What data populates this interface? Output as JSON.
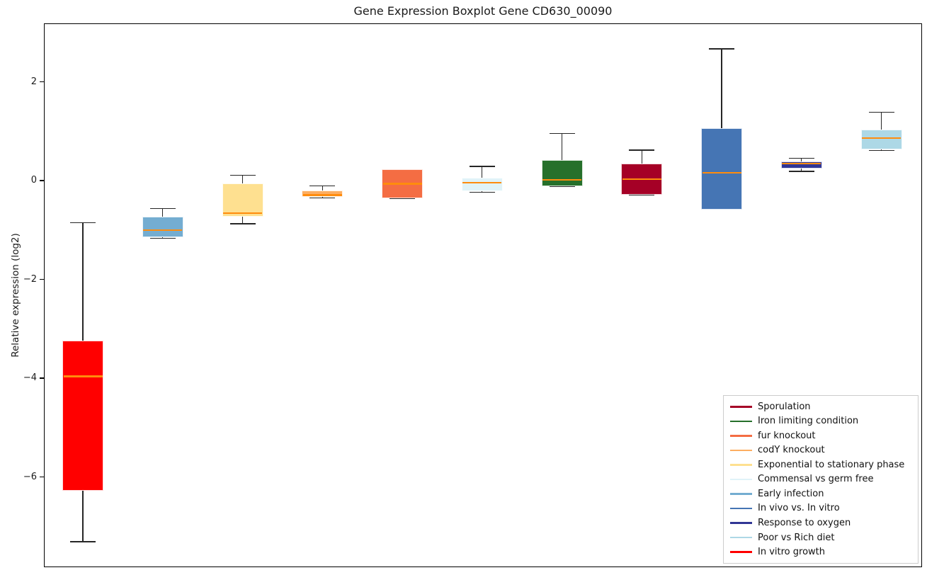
{
  "chart_data": {
    "type": "boxplot",
    "title": "Gene Expression Boxplot Gene CD630_00090",
    "ylabel": "Relative expression (log2)",
    "xlabel": "",
    "x_tick_labels": [],
    "grid": false,
    "ylim": [
      -7.84,
      3.18
    ],
    "yticks": [
      {
        "label": "2",
        "value": 2
      },
      {
        "label": "0",
        "value": 0
      },
      {
        "label": "−2",
        "value": -2
      },
      {
        "label": "−4",
        "value": -4
      },
      {
        "label": "−6",
        "value": -6
      }
    ],
    "median_color": "#ff8c0d",
    "whisker_color": "#262626",
    "legend_position": "lower right",
    "boxes": [
      {
        "label": "In vitro growth",
        "color": "#ff0000",
        "whislo": -7.3,
        "q1": -6.26,
        "med": -3.95,
        "q3": -3.22,
        "whishi": -0.84
      },
      {
        "label": "Early infection",
        "color": "#74add1",
        "whislo": -1.15,
        "q1": -1.13,
        "med": -0.99,
        "q3": -0.71,
        "whishi": -0.55
      },
      {
        "label": "Exponential to stationary phase",
        "color": "#fee090",
        "whislo": -0.86,
        "q1": -0.72,
        "med": -0.64,
        "q3": -0.05,
        "whishi": 0.12
      },
      {
        "label": "codY knockout",
        "color": "#fdae61",
        "whislo": -0.34,
        "q1": -0.32,
        "med": -0.28,
        "q3": -0.19,
        "whishi": -0.09
      },
      {
        "label": "fur knockout",
        "color": "#f46d43",
        "whislo": -0.35,
        "q1": -0.35,
        "med": -0.05,
        "q3": 0.24,
        "whishi": 0.24
      },
      {
        "label": "Commensal vs germ free",
        "color": "#e0f3f8",
        "whislo": -0.22,
        "q1": -0.2,
        "med": -0.03,
        "q3": 0.07,
        "whishi": 0.3
      },
      {
        "label": "Iron limiting condition",
        "color": "#26702b",
        "whislo": -0.1,
        "q1": -0.1,
        "med": 0.03,
        "q3": 0.43,
        "whishi": 0.97
      },
      {
        "label": "Sporulation",
        "color": "#a50026",
        "whislo": -0.27,
        "q1": -0.27,
        "med": 0.04,
        "q3": 0.36,
        "whishi": 0.63
      },
      {
        "label": "In vivo vs. In vitro",
        "color": "#4575b4",
        "whislo": -0.57,
        "q1": -0.57,
        "med": 0.17,
        "q3": 1.08,
        "whishi": 2.68
      },
      {
        "label": "Response to oxygen",
        "color": "#313695",
        "whislo": 0.2,
        "q1": 0.26,
        "med": 0.36,
        "q3": 0.4,
        "whishi": 0.47
      },
      {
        "label": "Poor vs Rich diet",
        "color": "#add8e6",
        "whislo": 0.62,
        "q1": 0.65,
        "med": 0.88,
        "q3": 1.05,
        "whishi": 1.4
      }
    ],
    "legend": [
      {
        "label": "Sporulation",
        "color": "#a50026"
      },
      {
        "label": "Iron limiting condition",
        "color": "#26702b"
      },
      {
        "label": "fur knockout",
        "color": "#f46d43"
      },
      {
        "label": "codY knockout",
        "color": "#fdae61"
      },
      {
        "label": "Exponential to stationary phase",
        "color": "#fee090"
      },
      {
        "label": "Commensal vs germ free",
        "color": "#e0f3f8"
      },
      {
        "label": "Early infection",
        "color": "#74add1"
      },
      {
        "label": "In vivo vs. In vitro",
        "color": "#4575b4"
      },
      {
        "label": "Response to oxygen",
        "color": "#313695"
      },
      {
        "label": "Poor vs Rich diet",
        "color": "#add8e6"
      },
      {
        "label": "In vitro growth",
        "color": "#ff0000"
      }
    ]
  }
}
